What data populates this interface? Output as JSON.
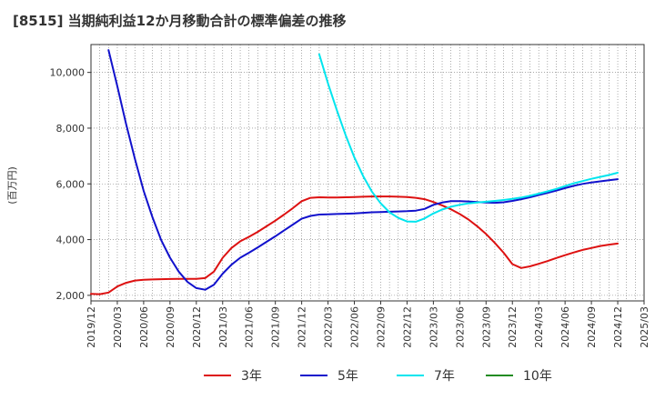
{
  "chart_data": {
    "type": "line",
    "title": "[8515]  当期純利益12か月移動合計の標準偏差の推移",
    "ylabel": "(百万円)",
    "xlabel": "",
    "ylim": [
      1800,
      11000
    ],
    "yticks": [
      2000,
      4000,
      6000,
      8000,
      10000
    ],
    "ytick_labels": [
      "2,000",
      "4,000",
      "6,000",
      "8,000",
      "10,000"
    ],
    "x_start": "2019-12",
    "x_end": "2025-03",
    "xticks": [
      "2019/12",
      "2020/03",
      "2020/06",
      "2020/09",
      "2020/12",
      "2021/03",
      "2021/06",
      "2021/09",
      "2021/12",
      "2022/03",
      "2022/06",
      "2022/09",
      "2022/12",
      "2023/03",
      "2023/06",
      "2023/09",
      "2023/12",
      "2024/03",
      "2024/06",
      "2024/09",
      "2024/12",
      "2025/03"
    ],
    "grid": true,
    "legend_position": "bottom",
    "series": [
      {
        "name": "3年",
        "color": "#dd1111",
        "points": [
          [
            "2019-12",
            2050
          ],
          [
            "2020-01",
            2040
          ],
          [
            "2020-02",
            2100
          ],
          [
            "2020-03",
            2320
          ],
          [
            "2020-04",
            2450
          ],
          [
            "2020-05",
            2530
          ],
          [
            "2020-06",
            2560
          ],
          [
            "2020-07",
            2570
          ],
          [
            "2020-08",
            2580
          ],
          [
            "2020-09",
            2585
          ],
          [
            "2020-10",
            2590
          ],
          [
            "2020-11",
            2590
          ],
          [
            "2020-12",
            2590
          ],
          [
            "2021-01",
            2620
          ],
          [
            "2021-02",
            2850
          ],
          [
            "2021-03",
            3350
          ],
          [
            "2021-04",
            3700
          ],
          [
            "2021-05",
            3940
          ],
          [
            "2021-06",
            4100
          ],
          [
            "2021-07",
            4280
          ],
          [
            "2021-08",
            4480
          ],
          [
            "2021-09",
            4680
          ],
          [
            "2021-10",
            4900
          ],
          [
            "2021-11",
            5130
          ],
          [
            "2021-12",
            5380
          ],
          [
            "2022-01",
            5500
          ],
          [
            "2022-02",
            5520
          ],
          [
            "2022-03",
            5510
          ],
          [
            "2022-04",
            5510
          ],
          [
            "2022-05",
            5520
          ],
          [
            "2022-06",
            5530
          ],
          [
            "2022-07",
            5540
          ],
          [
            "2022-08",
            5550
          ],
          [
            "2022-09",
            5550
          ],
          [
            "2022-10",
            5550
          ],
          [
            "2022-11",
            5540
          ],
          [
            "2022-12",
            5530
          ],
          [
            "2023-01",
            5500
          ],
          [
            "2023-02",
            5450
          ],
          [
            "2023-03",
            5350
          ],
          [
            "2023-04",
            5230
          ],
          [
            "2023-05",
            5090
          ],
          [
            "2023-06",
            4920
          ],
          [
            "2023-07",
            4720
          ],
          [
            "2023-08",
            4480
          ],
          [
            "2023-09",
            4200
          ],
          [
            "2023-10",
            3880
          ],
          [
            "2023-11",
            3530
          ],
          [
            "2023-12",
            3120
          ],
          [
            "2024-01",
            2980
          ],
          [
            "2024-02",
            3040
          ],
          [
            "2024-03",
            3130
          ],
          [
            "2024-04",
            3230
          ],
          [
            "2024-05",
            3340
          ],
          [
            "2024-06",
            3440
          ],
          [
            "2024-07",
            3540
          ],
          [
            "2024-08",
            3630
          ],
          [
            "2024-09",
            3700
          ],
          [
            "2024-10",
            3770
          ],
          [
            "2024-11",
            3820
          ],
          [
            "2024-12",
            3860
          ]
        ]
      },
      {
        "name": "5年",
        "color": "#1111cc",
        "points": [
          [
            "2020-02",
            10800
          ],
          [
            "2020-03",
            9500
          ],
          [
            "2020-04",
            8150
          ],
          [
            "2020-05",
            6900
          ],
          [
            "2020-06",
            5750
          ],
          [
            "2020-07",
            4800
          ],
          [
            "2020-08",
            3980
          ],
          [
            "2020-09",
            3350
          ],
          [
            "2020-10",
            2850
          ],
          [
            "2020-11",
            2480
          ],
          [
            "2020-12",
            2260
          ],
          [
            "2021-01",
            2200
          ],
          [
            "2021-02",
            2380
          ],
          [
            "2021-03",
            2780
          ],
          [
            "2021-04",
            3100
          ],
          [
            "2021-05",
            3350
          ],
          [
            "2021-06",
            3530
          ],
          [
            "2021-07",
            3720
          ],
          [
            "2021-08",
            3920
          ],
          [
            "2021-09",
            4120
          ],
          [
            "2021-10",
            4330
          ],
          [
            "2021-11",
            4540
          ],
          [
            "2021-12",
            4750
          ],
          [
            "2022-01",
            4850
          ],
          [
            "2022-02",
            4900
          ],
          [
            "2022-03",
            4910
          ],
          [
            "2022-04",
            4920
          ],
          [
            "2022-05",
            4930
          ],
          [
            "2022-06",
            4940
          ],
          [
            "2022-07",
            4960
          ],
          [
            "2022-08",
            4980
          ],
          [
            "2022-09",
            4990
          ],
          [
            "2022-10",
            5000
          ],
          [
            "2022-11",
            5010
          ],
          [
            "2022-12",
            5020
          ],
          [
            "2023-01",
            5040
          ],
          [
            "2023-02",
            5100
          ],
          [
            "2023-03",
            5250
          ],
          [
            "2023-04",
            5330
          ],
          [
            "2023-05",
            5380
          ],
          [
            "2023-06",
            5380
          ],
          [
            "2023-07",
            5370
          ],
          [
            "2023-08",
            5350
          ],
          [
            "2023-09",
            5330
          ],
          [
            "2023-10",
            5320
          ],
          [
            "2023-11",
            5340
          ],
          [
            "2023-12",
            5390
          ],
          [
            "2024-01",
            5450
          ],
          [
            "2024-02",
            5520
          ],
          [
            "2024-03",
            5600
          ],
          [
            "2024-04",
            5680
          ],
          [
            "2024-05",
            5760
          ],
          [
            "2024-06",
            5850
          ],
          [
            "2024-07",
            5930
          ],
          [
            "2024-08",
            6000
          ],
          [
            "2024-09",
            6050
          ],
          [
            "2024-10",
            6090
          ],
          [
            "2024-11",
            6130
          ],
          [
            "2024-12",
            6170
          ]
        ]
      },
      {
        "name": "7年",
        "color": "#00e5ee",
        "points": [
          [
            "2022-02",
            10650
          ],
          [
            "2022-03",
            9600
          ],
          [
            "2022-04",
            8650
          ],
          [
            "2022-05",
            7750
          ],
          [
            "2022-06",
            6950
          ],
          [
            "2022-07",
            6280
          ],
          [
            "2022-08",
            5720
          ],
          [
            "2022-09",
            5300
          ],
          [
            "2022-10",
            4980
          ],
          [
            "2022-11",
            4780
          ],
          [
            "2022-12",
            4650
          ],
          [
            "2023-01",
            4640
          ],
          [
            "2023-02",
            4760
          ],
          [
            "2023-03",
            4940
          ],
          [
            "2023-04",
            5080
          ],
          [
            "2023-05",
            5180
          ],
          [
            "2023-06",
            5250
          ],
          [
            "2023-07",
            5300
          ],
          [
            "2023-08",
            5330
          ],
          [
            "2023-09",
            5360
          ],
          [
            "2023-10",
            5390
          ],
          [
            "2023-11",
            5420
          ],
          [
            "2023-12",
            5460
          ],
          [
            "2024-01",
            5510
          ],
          [
            "2024-02",
            5570
          ],
          [
            "2024-03",
            5650
          ],
          [
            "2024-04",
            5730
          ],
          [
            "2024-05",
            5820
          ],
          [
            "2024-06",
            5920
          ],
          [
            "2024-07",
            6020
          ],
          [
            "2024-08",
            6100
          ],
          [
            "2024-09",
            6180
          ],
          [
            "2024-10",
            6250
          ],
          [
            "2024-11",
            6320
          ],
          [
            "2024-12",
            6400
          ]
        ]
      },
      {
        "name": "10年",
        "color": "#228b22",
        "points": []
      }
    ]
  }
}
